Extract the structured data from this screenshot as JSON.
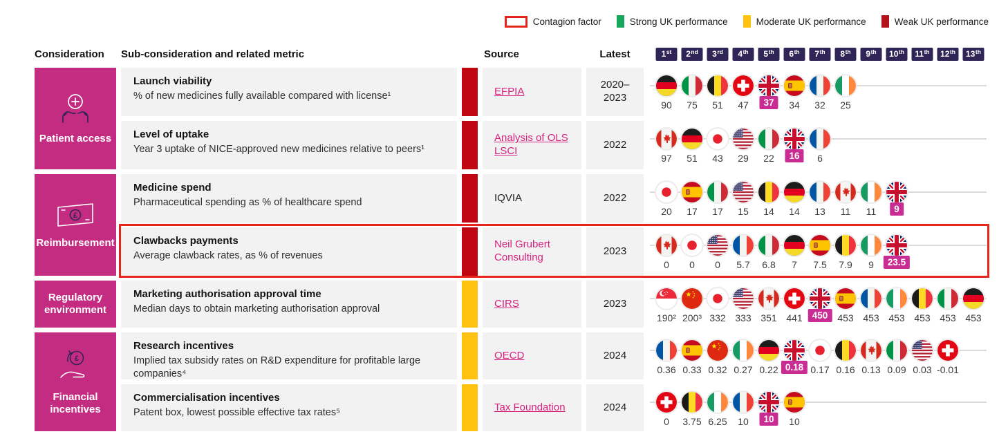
{
  "legend": {
    "contagion_label": "Contagion factor",
    "items": [
      {
        "name": "strong",
        "label": "Strong UK performance",
        "color": "#16A75C"
      },
      {
        "name": "moderate",
        "label": "Moderate UK performance",
        "color": "#FFC20E"
      },
      {
        "name": "weak",
        "label": "Weak UK performance",
        "color": "#B5121B"
      }
    ]
  },
  "header": {
    "consideration": "Consideration",
    "sub_consideration": "Sub-consideration and related metric",
    "source": "Source",
    "latest": "Latest",
    "ranks": [
      {
        "num": "1",
        "suffix": "st"
      },
      {
        "num": "2",
        "suffix": "nd"
      },
      {
        "num": "3",
        "suffix": "rd"
      },
      {
        "num": "4",
        "suffix": "th"
      },
      {
        "num": "5",
        "suffix": "th"
      },
      {
        "num": "6",
        "suffix": "th"
      },
      {
        "num": "7",
        "suffix": "th"
      },
      {
        "num": "8",
        "suffix": "th"
      },
      {
        "num": "9",
        "suffix": "th"
      },
      {
        "num": "10",
        "suffix": "th"
      },
      {
        "num": "11",
        "suffix": "th"
      },
      {
        "num": "12",
        "suffix": "th"
      },
      {
        "num": "13",
        "suffix": "th"
      }
    ]
  },
  "considerations": [
    {
      "label": "Patient access",
      "icon": "patient-access"
    },
    {
      "label": "Reimbursement",
      "icon": "reimbursement"
    },
    {
      "label": "Regulatory environment",
      "icon": null
    },
    {
      "label": "Financial incentives",
      "icon": "financial-incentives"
    }
  ],
  "colors": {
    "accent_pink": "#C42C82",
    "highlight_pink": "#C92D93",
    "weak": "#C00711",
    "moderate": "#FFC20E",
    "strong": "#16A75C",
    "contagion": "#E8251D",
    "rank_badge": "#2F2556",
    "link": "#D6217F"
  },
  "chart_data": {
    "type": "table",
    "rows": [
      {
        "group": 0,
        "title": "Launch viability",
        "description": "% of new medicines fully available compared with license¹",
        "performance": "weak",
        "source": {
          "label": "EFPIA",
          "style": "link"
        },
        "latest": "2020–2023",
        "contagion": false,
        "points": [
          {
            "country": "de",
            "value": "90"
          },
          {
            "country": "it",
            "value": "75"
          },
          {
            "country": "be",
            "value": "51"
          },
          {
            "country": "ch",
            "value": "47"
          },
          {
            "country": "gb",
            "value": "37",
            "highlight": true
          },
          {
            "country": "es",
            "value": "34"
          },
          {
            "country": "fr",
            "value": "32"
          },
          {
            "country": "ie",
            "value": "25"
          }
        ]
      },
      {
        "group": 0,
        "title": "Level of uptake",
        "description": "Year 3 uptake of NICE-approved new medicines relative to peers¹",
        "performance": "weak",
        "source": {
          "label": "Analysis of OLS LSCI",
          "style": "link"
        },
        "latest": "2022",
        "contagion": false,
        "points": [
          {
            "country": "ca",
            "value": "97"
          },
          {
            "country": "de",
            "value": "51"
          },
          {
            "country": "jp",
            "value": "43"
          },
          {
            "country": "us",
            "value": "29"
          },
          {
            "country": "it",
            "value": "22"
          },
          {
            "country": "gb",
            "value": "16",
            "highlight": true
          },
          {
            "country": "fr",
            "value": "6"
          }
        ]
      },
      {
        "group": 1,
        "title": "Medicine spend",
        "description": "Pharmaceutical spending as % of healthcare spend",
        "performance": "weak",
        "source": {
          "label": "IQVIA",
          "style": "plain"
        },
        "latest": "2022",
        "contagion": false,
        "points": [
          {
            "country": "jp",
            "value": "20"
          },
          {
            "country": "es",
            "value": "17"
          },
          {
            "country": "it",
            "value": "17"
          },
          {
            "country": "us",
            "value": "15"
          },
          {
            "country": "be",
            "value": "14"
          },
          {
            "country": "de",
            "value": "14"
          },
          {
            "country": "fr",
            "value": "13"
          },
          {
            "country": "ca",
            "value": "11"
          },
          {
            "country": "ie",
            "value": "11"
          },
          {
            "country": "gb",
            "value": "9",
            "highlight": true
          }
        ]
      },
      {
        "group": 1,
        "title": "Clawbacks payments",
        "description": "Average clawback rates, as % of revenues",
        "performance": "weak",
        "source": {
          "label": "Neil Grubert Consulting",
          "style": "accent"
        },
        "latest": "2023",
        "contagion": true,
        "points": [
          {
            "country": "ca",
            "value": "0"
          },
          {
            "country": "jp",
            "value": "0"
          },
          {
            "country": "us",
            "value": "0"
          },
          {
            "country": "fr",
            "value": "5.7"
          },
          {
            "country": "it",
            "value": "6.8"
          },
          {
            "country": "de",
            "value": "7"
          },
          {
            "country": "es",
            "value": "7.5"
          },
          {
            "country": "be",
            "value": "7.9"
          },
          {
            "country": "ie",
            "value": "9"
          },
          {
            "country": "gb",
            "value": "23.5",
            "highlight": true
          }
        ]
      },
      {
        "group": 2,
        "title": "Marketing authorisation approval time",
        "description": "Median days to obtain marketing authorisation approval",
        "performance": "moderate",
        "source": {
          "label": "CIRS",
          "style": "link"
        },
        "latest": "2023",
        "contagion": false,
        "points": [
          {
            "country": "sg",
            "value": "190²"
          },
          {
            "country": "cn",
            "value": "200³"
          },
          {
            "country": "jp",
            "value": "332"
          },
          {
            "country": "us",
            "value": "333"
          },
          {
            "country": "ca",
            "value": "351"
          },
          {
            "country": "ch",
            "value": "441"
          },
          {
            "country": "gb",
            "value": "450",
            "highlight": true
          },
          {
            "country": "es",
            "value": "453"
          },
          {
            "country": "fr",
            "value": "453"
          },
          {
            "country": "ie",
            "value": "453"
          },
          {
            "country": "be",
            "value": "453"
          },
          {
            "country": "it",
            "value": "453"
          },
          {
            "country": "de",
            "value": "453"
          }
        ]
      },
      {
        "group": 3,
        "title": "Research incentives",
        "description": "Implied tax subsidy rates on R&D expenditure for profitable large companies⁴",
        "performance": "moderate",
        "source": {
          "label": "OECD",
          "style": "link"
        },
        "latest": "2024",
        "contagion": false,
        "points": [
          {
            "country": "fr",
            "value": "0.36"
          },
          {
            "country": "es",
            "value": "0.33"
          },
          {
            "country": "cn",
            "value": "0.32"
          },
          {
            "country": "ie",
            "value": "0.27"
          },
          {
            "country": "de",
            "value": "0.22"
          },
          {
            "country": "gb",
            "value": "0.18",
            "highlight": true
          },
          {
            "country": "jp",
            "value": "0.17"
          },
          {
            "country": "be",
            "value": "0.16"
          },
          {
            "country": "ca",
            "value": "0.13"
          },
          {
            "country": "it",
            "value": "0.09"
          },
          {
            "country": "us",
            "value": "0.03"
          },
          {
            "country": "ch",
            "value": "-0.01"
          }
        ]
      },
      {
        "group": 3,
        "title": "Commercialisation incentives",
        "description": "Patent box, lowest possible effective tax rates⁵",
        "performance": "moderate",
        "source": {
          "label": "Tax Foundation",
          "style": "link"
        },
        "latest": "2024",
        "contagion": false,
        "points": [
          {
            "country": "ch",
            "value": "0"
          },
          {
            "country": "be",
            "value": "3.75"
          },
          {
            "country": "ie",
            "value": "6.25"
          },
          {
            "country": "fr",
            "value": "10"
          },
          {
            "country": "gb",
            "value": "10",
            "highlight": true
          },
          {
            "country": "es",
            "value": "10"
          }
        ]
      }
    ]
  }
}
